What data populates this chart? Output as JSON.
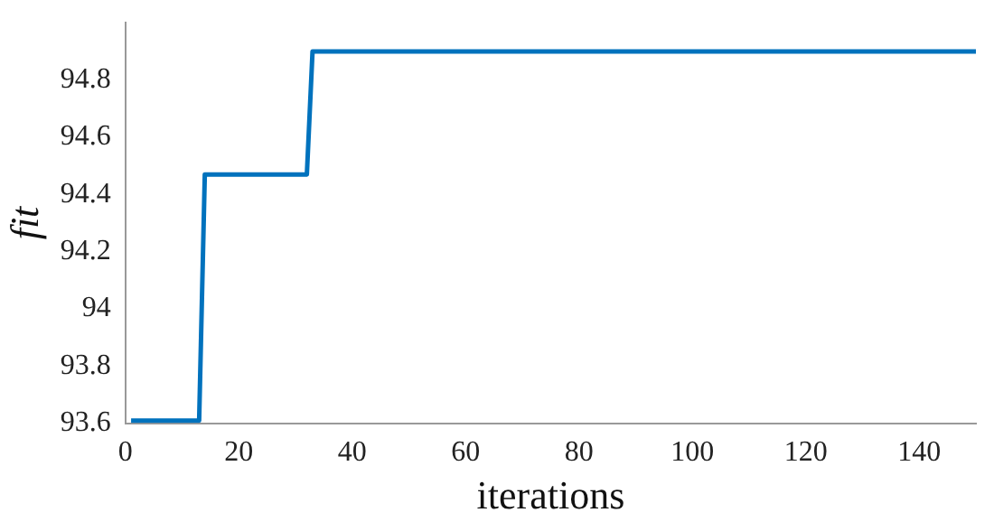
{
  "chart_data": {
    "type": "line",
    "xlabel": "iterations",
    "ylabel": "fit",
    "x": [
      1,
      13,
      14,
      32,
      33,
      150
    ],
    "series": [
      {
        "color": "#0072bd",
        "values": [
          93.61,
          93.61,
          94.47,
          94.47,
          94.9,
          94.9
        ]
      }
    ],
    "xlim": [
      0,
      150
    ],
    "xticks": [
      0,
      20,
      40,
      60,
      80,
      100,
      120,
      140
    ],
    "ylim": [
      93.6,
      95
    ],
    "yticks": [
      93.6,
      93.8,
      94,
      94.2,
      94.4,
      94.6,
      94.8
    ],
    "grid": false,
    "legend": false,
    "marker": "none",
    "line_style": "solid"
  }
}
